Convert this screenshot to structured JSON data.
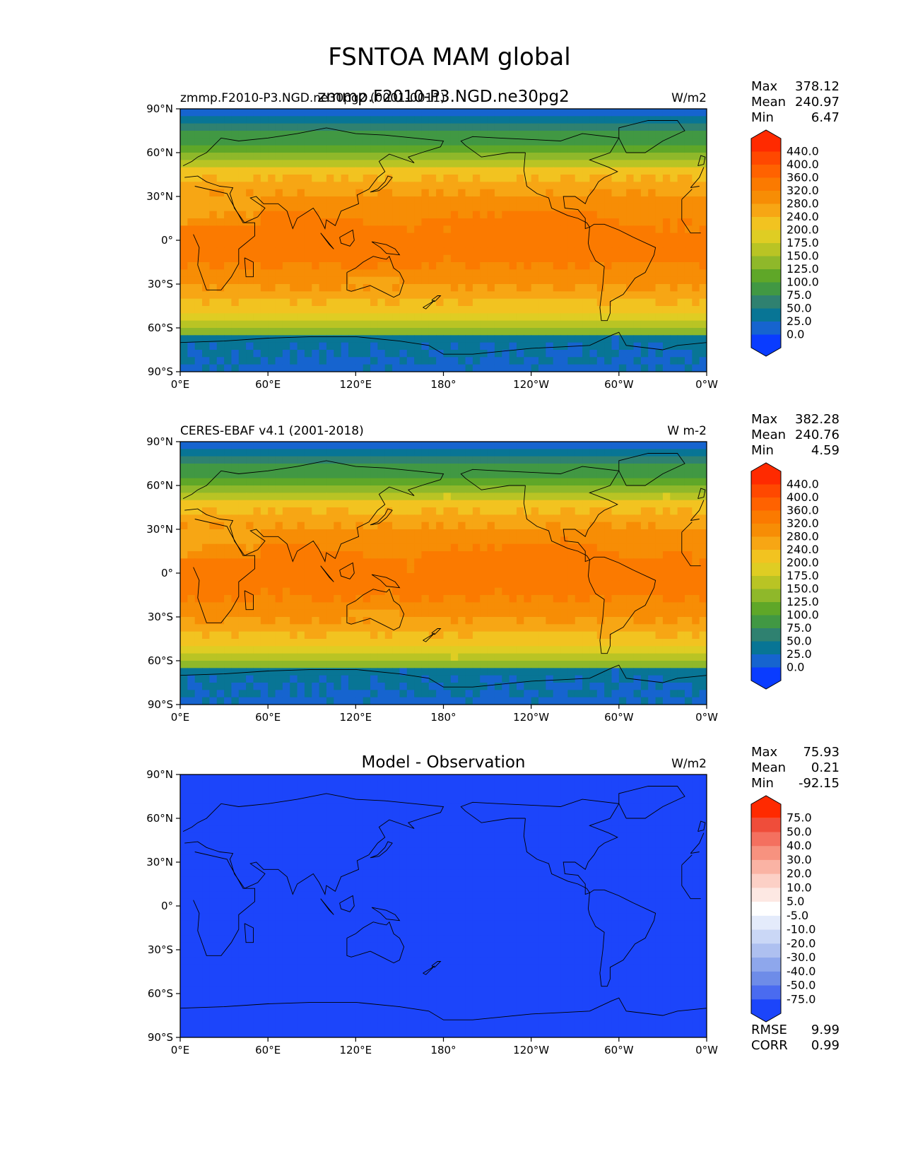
{
  "figure": {
    "title": "FSNTOA MAM global"
  },
  "panels": [
    {
      "left_label": "zmmp.F2010-P3.NGD.ne30pg2 (0001-0011)",
      "center_label": "zmmp.F2010-P3.NGD.ne30pg2",
      "units": "W/m2",
      "stats": [
        {
          "label": "Max",
          "value": "378.12"
        },
        {
          "label": "Mean",
          "value": "240.97"
        },
        {
          "label": "Min",
          "value": "6.47"
        }
      ],
      "colorbar": "abs"
    },
    {
      "left_label": "CERES-EBAF v4.1 (2001-2018)",
      "center_label": "",
      "units": "W m-2",
      "stats": [
        {
          "label": "Max",
          "value": "382.28"
        },
        {
          "label": "Mean",
          "value": "240.76"
        },
        {
          "label": "Min",
          "value": "4.59"
        }
      ],
      "colorbar": "abs"
    },
    {
      "left_label": "",
      "center_label": "Model - Observation",
      "units": "W/m2",
      "stats": [
        {
          "label": "Max",
          "value": "75.93"
        },
        {
          "label": "Mean",
          "value": "0.21"
        },
        {
          "label": "Min",
          "value": "-92.15"
        }
      ],
      "extra_stats": [
        {
          "label": "RMSE",
          "value": "9.99"
        },
        {
          "label": "CORR",
          "value": "0.99"
        }
      ],
      "colorbar": "diff"
    }
  ],
  "axes": {
    "lat_ticks": [
      "90°N",
      "60°N",
      "30°N",
      "0°",
      "30°S",
      "60°S",
      "90°S"
    ],
    "lon_ticks": [
      "0°E",
      "60°E",
      "120°E",
      "180°",
      "120°W",
      "60°W",
      "0°W"
    ]
  },
  "colorbars": {
    "abs": {
      "levels": [
        "440.0",
        "400.0",
        "360.0",
        "320.0",
        "280.0",
        "240.0",
        "200.0",
        "175.0",
        "150.0",
        "125.0",
        "100.0",
        "75.0",
        "50.0",
        "25.0",
        "0.0"
      ],
      "colors": [
        "#ff2a00",
        "#ff4800",
        "#ff6200",
        "#fb7a00",
        "#f78d05",
        "#f7a614",
        "#f2c320",
        "#dfcd23",
        "#b9c424",
        "#8fb82a",
        "#5fa728",
        "#419843",
        "#2f8170",
        "#087595",
        "#1664cf",
        "#0a3cff"
      ]
    },
    "diff": {
      "levels": [
        "75.0",
        "50.0",
        "40.0",
        "30.0",
        "20.0",
        "10.0",
        "5.0",
        "-5.0",
        "-10.0",
        "-20.0",
        "-30.0",
        "-40.0",
        "-50.0",
        "-75.0"
      ],
      "colors": [
        "#ff2a00",
        "#ef4d3a",
        "#f4705f",
        "#f7927f",
        "#fab3a4",
        "#fcd0c6",
        "#fde8e3",
        "#ffffff",
        "#e4ebfb",
        "#cad7f6",
        "#aec0f0",
        "#8ea7ec",
        "#6e8ce8",
        "#4a6bf0",
        "#1c45fa"
      ]
    }
  },
  "chart_data": [
    {
      "type": "heatmap",
      "title": "zmmp.F2010-P3.NGD.ne30pg2",
      "subtitle": "zmmp.F2010-P3.NGD.ne30pg2 (0001-0011)",
      "variable": "FSNTOA",
      "units": "W/m2",
      "x_ticks": [
        "0°E",
        "60°E",
        "120°E",
        "180°",
        "120°W",
        "60°W",
        "0°W"
      ],
      "y_ticks": [
        "90°N",
        "60°N",
        "30°N",
        "0°",
        "30°S",
        "60°S",
        "90°S"
      ],
      "xlim": [
        0,
        360
      ],
      "ylim": [
        -90,
        90
      ],
      "stats": {
        "max": 378.12,
        "mean": 240.97,
        "min": 6.47
      },
      "color_levels": [
        0,
        25,
        50,
        75,
        100,
        125,
        150,
        175,
        200,
        240,
        280,
        320,
        360,
        400,
        440
      ]
    },
    {
      "type": "heatmap",
      "title": "CERES-EBAF v4.1 (2001-2018)",
      "variable": "FSNTOA",
      "units": "W m-2",
      "x_ticks": [
        "0°E",
        "60°E",
        "120°E",
        "180°",
        "120°W",
        "60°W",
        "0°W"
      ],
      "y_ticks": [
        "90°N",
        "60°N",
        "30°N",
        "0°",
        "30°S",
        "60°S",
        "90°S"
      ],
      "xlim": [
        0,
        360
      ],
      "ylim": [
        -90,
        90
      ],
      "stats": {
        "max": 382.28,
        "mean": 240.76,
        "min": 4.59
      },
      "color_levels": [
        0,
        25,
        50,
        75,
        100,
        125,
        150,
        175,
        200,
        240,
        280,
        320,
        360,
        400,
        440
      ]
    },
    {
      "type": "heatmap",
      "title": "Model - Observation",
      "units": "W/m2",
      "x_ticks": [
        "0°E",
        "60°E",
        "120°E",
        "180°",
        "120°W",
        "60°W",
        "0°W"
      ],
      "y_ticks": [
        "90°N",
        "60°N",
        "30°N",
        "0°",
        "30°S",
        "60°S",
        "90°S"
      ],
      "xlim": [
        0,
        360
      ],
      "ylim": [
        -90,
        90
      ],
      "stats": {
        "max": 75.93,
        "mean": 0.21,
        "min": -92.15,
        "rmse": 9.99,
        "corr": 0.99
      },
      "color_levels": [
        -75,
        -50,
        -40,
        -30,
        -20,
        -10,
        -5,
        5,
        10,
        20,
        30,
        40,
        50,
        75
      ]
    }
  ]
}
